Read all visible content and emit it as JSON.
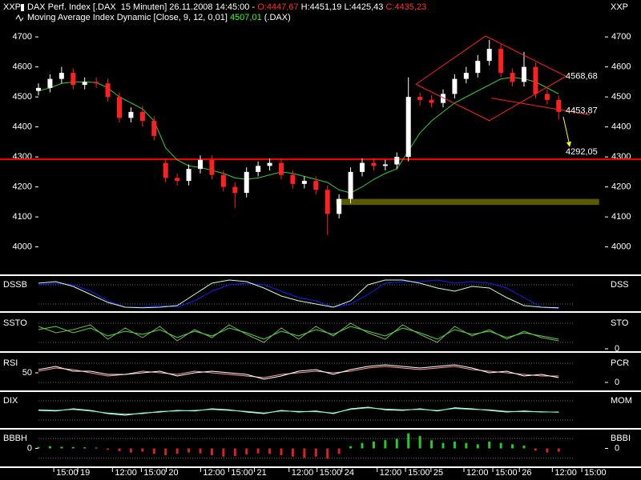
{
  "chart_data": [
    {
      "type": "candlestick",
      "header": [
        {
          "text": "DAX Perf. Index [.DAX  15 Minuten] 26.11.2008 14:45:00 - ",
          "color": "#ffffff"
        },
        {
          "text": "O:4447,67",
          "color": "#ff3030"
        },
        {
          "text": " H:4451,19 L:4425,43 ",
          "color": "#ffffff"
        },
        {
          "text": "C:4435,23",
          "color": "#ff3030"
        }
      ],
      "subheader": [
        {
          "text": "Moving Average Index Dynamic [Close, 9, 12, 0,01] ",
          "color": "#ffffff"
        },
        {
          "text": "4507,01",
          "color": "#33ff33"
        },
        {
          "text": " (.DAX)",
          "color": "#ffffff"
        }
      ],
      "y_label_left": "XXP",
      "y_label_right": "XXP",
      "xlim": [
        0,
        196
      ],
      "ylim": [
        3911,
        4823
      ],
      "yticks": [
        4000,
        4100,
        4200,
        4300,
        4400,
        4500,
        4600,
        4700
      ],
      "xticks": [
        {
          "value": 5.3,
          "label": "15:00"
        },
        {
          "value": 13.6,
          "label": "19"
        },
        {
          "value": 25.6,
          "label": "12:00"
        },
        {
          "value": 35.6,
          "label": "15:00"
        },
        {
          "value": 44.2,
          "label": "20"
        },
        {
          "value": 56.1,
          "label": "12:00"
        },
        {
          "value": 65.8,
          "label": "15:00"
        },
        {
          "value": 74.7,
          "label": "21"
        },
        {
          "value": 86.7,
          "label": "12:00"
        },
        {
          "value": 96.4,
          "label": "15:00"
        },
        {
          "value": 105,
          "label": "24"
        },
        {
          "value": 117.2,
          "label": "12:00"
        },
        {
          "value": 127,
          "label": "15:00"
        },
        {
          "value": 135.8,
          "label": "25"
        },
        {
          "value": 147.2,
          "label": "12:00"
        },
        {
          "value": 157.2,
          "label": "15:00"
        },
        {
          "value": 166.4,
          "label": "26"
        },
        {
          "value": 177.8,
          "label": "12:00"
        },
        {
          "value": 188,
          "label": "15:00"
        }
      ],
      "up_color": "#ffffff",
      "down_color": "#ff2020",
      "x": [
        0,
        4,
        8,
        12,
        16,
        20,
        24,
        28,
        32,
        36,
        40,
        44,
        48,
        52,
        56,
        60,
        64,
        68,
        72,
        76,
        80,
        84,
        88,
        92,
        96,
        100,
        104,
        108,
        112,
        116,
        120,
        124,
        128,
        132,
        136,
        140,
        144,
        148,
        152,
        156,
        160,
        164,
        168,
        172,
        176,
        180
      ],
      "open": [
        4520,
        4530,
        4560,
        4580,
        4540,
        4550,
        4545,
        4500,
        4430,
        4450,
        4420,
        4280,
        4230,
        4220,
        4260,
        4290,
        4240,
        4200,
        4180,
        4250,
        4270,
        4280,
        4240,
        4210,
        4220,
        4190,
        4110,
        4160,
        4250,
        4280,
        4270,
        4275,
        4300,
        4500,
        4490,
        4480,
        4510,
        4560,
        4580,
        4620,
        4660,
        4580,
        4550,
        4600,
        4510,
        4490
      ],
      "high": [
        4545,
        4575,
        4600,
        4595,
        4565,
        4565,
        4560,
        4515,
        4465,
        4470,
        4435,
        4295,
        4245,
        4275,
        4305,
        4305,
        4255,
        4215,
        4265,
        4285,
        4295,
        4295,
        4255,
        4235,
        4235,
        4205,
        4175,
        4265,
        4295,
        4295,
        4290,
        4315,
        4565,
        4515,
        4505,
        4525,
        4575,
        4600,
        4640,
        4690,
        4675,
        4595,
        4650,
        4615,
        4525,
        4505
      ],
      "low": [
        4505,
        4515,
        4545,
        4525,
        4525,
        4530,
        4485,
        4415,
        4415,
        4400,
        4355,
        4215,
        4205,
        4205,
        4245,
        4225,
        4185,
        4130,
        4165,
        4235,
        4255,
        4225,
        4195,
        4195,
        4175,
        4040,
        4095,
        4145,
        4235,
        4255,
        4255,
        4260,
        4285,
        4470,
        4465,
        4465,
        4495,
        4545,
        4565,
        4605,
        4565,
        4535,
        4535,
        4495,
        4475,
        4425
      ],
      "close": [
        4530,
        4560,
        4580,
        4540,
        4550,
        4545,
        4500,
        4430,
        4450,
        4420,
        4370,
        4230,
        4220,
        4260,
        4290,
        4240,
        4200,
        4180,
        4250,
        4270,
        4280,
        4240,
        4210,
        4220,
        4190,
        4110,
        4160,
        4250,
        4280,
        4270,
        4275,
        4300,
        4500,
        4490,
        4480,
        4510,
        4560,
        4580,
        4620,
        4660,
        4580,
        4550,
        4600,
        4510,
        4490,
        4450
      ],
      "ma": {
        "color": "#33cc33",
        "values": [
          4520,
          4530,
          4545,
          4550,
          4550,
          4548,
          4530,
          4500,
          4480,
          4460,
          4420,
          4330,
          4290,
          4270,
          4265,
          4255,
          4245,
          4230,
          4225,
          4230,
          4240,
          4250,
          4245,
          4235,
          4225,
          4215,
          4190,
          4180,
          4200,
          4225,
          4245,
          4260,
          4320,
          4380,
          4420,
          4450,
          4480,
          4500,
          4520,
          4540,
          4560,
          4565,
          4560,
          4550,
          4530,
          4510
        ]
      },
      "hline": {
        "value": 4292.05,
        "label": "4292,05",
        "color": "#ff0000"
      },
      "band": {
        "x": [
          103,
          194
        ],
        "y": [
          4140,
          4160
        ],
        "color": "#5a5a00"
      },
      "lines": [
        {
          "color": "#ff2020",
          "x": [
            130.6,
            154.7,
            182.5,
            156,
            130.6
          ],
          "y": [
            4542,
            4703,
            4568.68,
            4421,
            4542
          ]
        },
        {
          "color": "#ff2020",
          "x": [
            156.7,
            190.8
          ],
          "y": [
            4496,
            4440
          ]
        }
      ],
      "line_labels": [
        {
          "value": 4568.68,
          "label": "4568,68"
        },
        {
          "value": 4453.87,
          "label": "4453,87"
        }
      ],
      "label_color": "#ff2020"
    },
    {
      "type": "line",
      "title_left": "DSSB",
      "title_right": "DSS",
      "xlim": [
        0,
        196
      ],
      "ylim": [
        0,
        100
      ],
      "x": [
        0,
        6,
        12,
        18,
        24,
        30,
        36,
        42,
        48,
        54,
        60,
        66,
        72,
        78,
        84,
        90,
        96,
        102,
        108,
        114,
        120,
        126,
        132,
        138,
        144,
        150,
        156,
        162,
        168,
        174,
        180
      ],
      "series": [
        {
          "color": "#1a1aff",
          "values": [
            80,
            85,
            80,
            60,
            30,
            10,
            10,
            15,
            10,
            30,
            60,
            80,
            85,
            80,
            60,
            40,
            30,
            10,
            20,
            50,
            85,
            90,
            90,
            95,
            85,
            90,
            85,
            70,
            40,
            10,
            5
          ]
        },
        {
          "color": "#ccffcc",
          "values": [
            85,
            90,
            75,
            50,
            25,
            10,
            8,
            10,
            15,
            50,
            85,
            95,
            90,
            70,
            45,
            30,
            20,
            10,
            30,
            80,
            95,
            95,
            85,
            70,
            60,
            75,
            70,
            40,
            15,
            10,
            8
          ]
        }
      ]
    },
    {
      "type": "line",
      "title_left": "SSTO",
      "title_right": "STO",
      "xlim": [
        0,
        196
      ],
      "ylim": [
        0,
        100
      ],
      "y2lim": [
        0,
        100
      ],
      "y2ticks": [
        0
      ],
      "x": [
        0,
        6,
        12,
        18,
        24,
        30,
        36,
        42,
        48,
        54,
        60,
        66,
        72,
        78,
        84,
        90,
        96,
        102,
        108,
        114,
        120,
        126,
        132,
        138,
        144,
        150,
        156,
        162,
        168,
        174,
        180
      ],
      "series": [
        {
          "color": "#88aa55",
          "values": [
            70,
            50,
            60,
            75,
            30,
            65,
            35,
            70,
            25,
            60,
            35,
            75,
            45,
            20,
            65,
            30,
            70,
            40,
            80,
            50,
            30,
            75,
            45,
            20,
            70,
            40,
            60,
            30,
            55,
            35,
            25
          ]
        },
        {
          "color": "#44dd44",
          "values": [
            60,
            70,
            50,
            65,
            40,
            55,
            45,
            60,
            35,
            55,
            40,
            65,
            50,
            30,
            55,
            40,
            60,
            45,
            70,
            55,
            40,
            65,
            50,
            30,
            60,
            45,
            55,
            35,
            50,
            40,
            30
          ]
        }
      ]
    },
    {
      "type": "line",
      "title_left": "RSI",
      "title_right": "PCR",
      "xlim": [
        0,
        196
      ],
      "ylim": [
        0,
        100
      ],
      "yticks": [
        50
      ],
      "y2lim": [
        -25,
        100
      ],
      "y2ticks": [
        0
      ],
      "x": [
        0,
        6,
        12,
        18,
        24,
        30,
        36,
        42,
        48,
        54,
        60,
        66,
        72,
        78,
        84,
        90,
        96,
        102,
        108,
        114,
        120,
        126,
        132,
        138,
        144,
        150,
        156,
        162,
        168,
        174,
        180
      ],
      "series": [
        {
          "color": "#ff9999",
          "values": [
            55,
            65,
            60,
            50,
            40,
            45,
            55,
            50,
            45,
            55,
            50,
            45,
            40,
            35,
            45,
            50,
            55,
            50,
            55,
            65,
            70,
            65,
            60,
            65,
            70,
            60,
            55,
            50,
            45,
            40,
            40
          ]
        },
        {
          "color": "#ffffff",
          "values": [
            60,
            70,
            55,
            55,
            45,
            45,
            50,
            55,
            40,
            50,
            55,
            50,
            45,
            30,
            40,
            55,
            60,
            45,
            60,
            70,
            75,
            70,
            65,
            70,
            75,
            65,
            50,
            55,
            40,
            45,
            35
          ]
        }
      ]
    },
    {
      "type": "line",
      "title_left": "DIX",
      "title_right": "MOM",
      "xlim": [
        0,
        196
      ],
      "ylim": [
        0,
        100
      ],
      "x": [
        0,
        6,
        12,
        18,
        24,
        30,
        36,
        42,
        48,
        54,
        60,
        66,
        72,
        78,
        84,
        90,
        96,
        102,
        108,
        114,
        120,
        126,
        132,
        138,
        144,
        150,
        156,
        162,
        168,
        174,
        180
      ],
      "series": [
        {
          "color": "#ffffff",
          "values": [
            50,
            48,
            55,
            50,
            40,
            35,
            42,
            45,
            50,
            48,
            55,
            52,
            45,
            40,
            50,
            45,
            48,
            40,
            55,
            60,
            52,
            50,
            55,
            48,
            58,
            55,
            50,
            45,
            48,
            45,
            45
          ]
        },
        {
          "color": "#66ffcc",
          "values": [
            52,
            50,
            53,
            48,
            42,
            38,
            40,
            47,
            48,
            50,
            53,
            50,
            47,
            42,
            48,
            47,
            46,
            42,
            53,
            58,
            54,
            52,
            53,
            50,
            56,
            53,
            52,
            47,
            46,
            46,
            44
          ]
        }
      ]
    },
    {
      "type": "histogram",
      "title_left": "BBBH",
      "title_right": "BBBI",
      "xlim": [
        0,
        196
      ],
      "ylim": [
        -60,
        60
      ],
      "yticks": [
        0
      ],
      "y2lim": [
        -60,
        60
      ],
      "y2ticks": [
        0
      ],
      "pos_color": "#22cc22",
      "neg_color": "#dd2020",
      "x": [
        0,
        4,
        8,
        12,
        16,
        20,
        24,
        28,
        32,
        36,
        40,
        44,
        48,
        52,
        56,
        60,
        64,
        68,
        72,
        76,
        80,
        84,
        88,
        92,
        96,
        100,
        104,
        108,
        112,
        116,
        120,
        124,
        128,
        132,
        136,
        140,
        144,
        148,
        152,
        156,
        160,
        164,
        168,
        172,
        176,
        180
      ],
      "values": [
        5,
        8,
        6,
        5,
        4,
        3,
        -5,
        -10,
        -15,
        -12,
        -20,
        -25,
        -20,
        -15,
        -18,
        -25,
        -30,
        -28,
        -22,
        -18,
        -20,
        -25,
        -30,
        -35,
        -30,
        -38,
        -20,
        8,
        20,
        25,
        30,
        35,
        55,
        45,
        30,
        20,
        25,
        20,
        15,
        25,
        20,
        15,
        10,
        -8,
        -15,
        -12
      ]
    }
  ]
}
